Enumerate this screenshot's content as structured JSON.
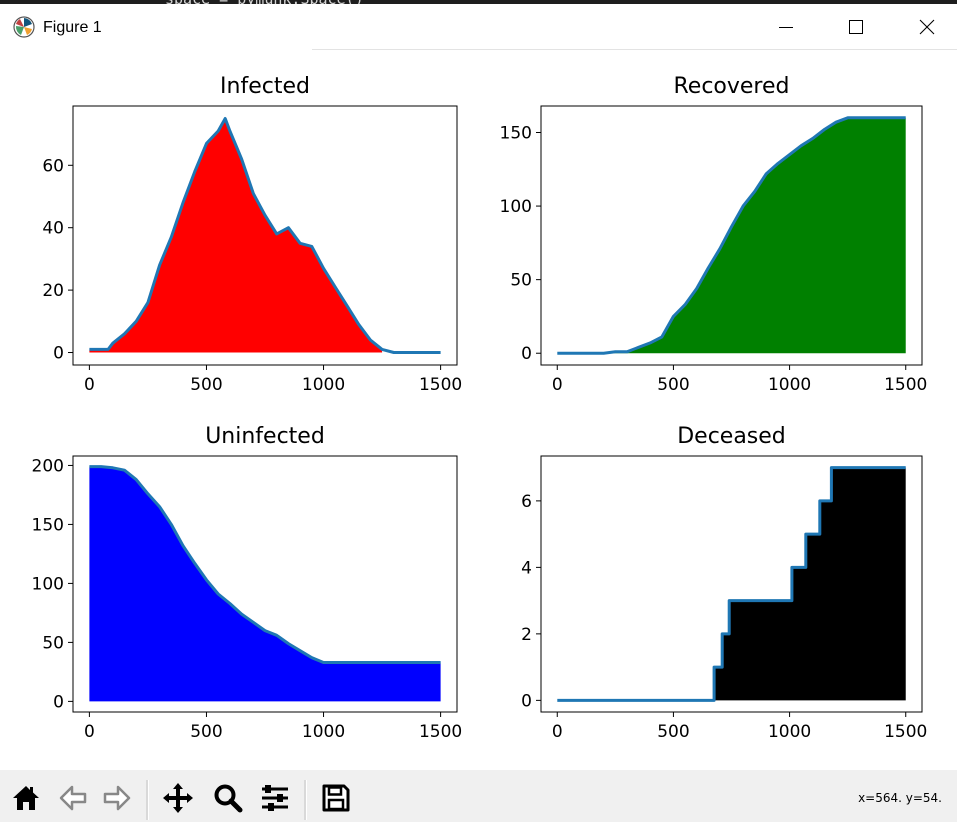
{
  "background_editor": {
    "text": "space = pymunk.Space()"
  },
  "window": {
    "title": "Figure 1",
    "icon": "matplotlib-icon",
    "controls": [
      "minimize-icon",
      "maximize-icon",
      "close-icon"
    ]
  },
  "toolbar": {
    "buttons": [
      {
        "name": "home-button",
        "icon": "home-icon"
      },
      {
        "name": "back-button",
        "icon": "arrow-left-icon"
      },
      {
        "name": "forward-button",
        "icon": "arrow-right-icon"
      },
      {
        "name": "pan-button",
        "icon": "move-icon"
      },
      {
        "name": "zoom-button",
        "icon": "magnifier-icon"
      },
      {
        "name": "configure-subplots-button",
        "icon": "sliders-icon"
      },
      {
        "name": "save-button",
        "icon": "floppy-disk-icon"
      }
    ],
    "coordinates": "x=564. y=54."
  },
  "chart_data": [
    {
      "type": "area",
      "title": "Infected",
      "fill_color": "#ff0000",
      "line_color": "#1f77b4",
      "xlim": [
        -70,
        1570
      ],
      "ylim": [
        -4,
        79
      ],
      "xticks": [
        0,
        500,
        1000,
        1500
      ],
      "yticks": [
        0,
        20,
        40,
        60
      ],
      "x": [
        0,
        80,
        100,
        150,
        200,
        250,
        300,
        350,
        400,
        450,
        500,
        550,
        580,
        600,
        650,
        700,
        750,
        800,
        850,
        900,
        950,
        1000,
        1050,
        1100,
        1150,
        1200,
        1250,
        1300,
        1350,
        1400,
        1450,
        1500
      ],
      "y": [
        1,
        1,
        3,
        6,
        10,
        16,
        28,
        37,
        48,
        58,
        67,
        71,
        75,
        71,
        62,
        51,
        44,
        38,
        40,
        35,
        34,
        27,
        21,
        15,
        9,
        4,
        1,
        0,
        0,
        0,
        0,
        0
      ],
      "fill_until_x": 1250
    },
    {
      "type": "area",
      "title": "Recovered",
      "fill_color": "#008000",
      "line_color": "#1f77b4",
      "xlim": [
        -70,
        1570
      ],
      "ylim": [
        -8,
        168
      ],
      "xticks": [
        0,
        500,
        1000,
        1500
      ],
      "yticks": [
        0,
        50,
        100,
        150
      ],
      "x": [
        0,
        200,
        250,
        300,
        350,
        400,
        450,
        500,
        550,
        600,
        650,
        700,
        750,
        800,
        850,
        900,
        950,
        1000,
        1050,
        1100,
        1150,
        1200,
        1250,
        1300,
        1350,
        1400,
        1450,
        1500
      ],
      "y": [
        0,
        0,
        1,
        1,
        4,
        7,
        11,
        25,
        33,
        44,
        58,
        71,
        86,
        100,
        110,
        122,
        129,
        135,
        141,
        146,
        152,
        157,
        160,
        160,
        160,
        160,
        160,
        160
      ]
    },
    {
      "type": "area",
      "title": "Uninfected",
      "fill_color": "#0000ff",
      "line_color": "#1f77b4",
      "xlim": [
        -70,
        1570
      ],
      "ylim": [
        -9,
        208
      ],
      "xticks": [
        0,
        500,
        1000,
        1500
      ],
      "yticks": [
        0,
        50,
        100,
        150,
        200
      ],
      "x": [
        0,
        50,
        100,
        150,
        200,
        250,
        300,
        350,
        400,
        450,
        500,
        550,
        600,
        650,
        700,
        750,
        800,
        850,
        900,
        950,
        1000,
        1050,
        1100,
        1500
      ],
      "y": [
        199,
        199,
        198,
        196,
        188,
        176,
        165,
        150,
        132,
        117,
        103,
        91,
        83,
        74,
        67,
        60,
        56,
        49,
        43,
        37,
        33,
        33,
        33,
        33
      ]
    },
    {
      "type": "area",
      "title": "Deceased",
      "fill_color": "#000000",
      "line_color": "#1f77b4",
      "xlim": [
        -70,
        1570
      ],
      "ylim": [
        -0.35,
        7.35
      ],
      "xticks": [
        0,
        500,
        1000,
        1500
      ],
      "yticks": [
        0,
        2,
        4,
        6
      ],
      "step": true,
      "x": [
        0,
        655,
        675,
        710,
        740,
        960,
        1010,
        1070,
        1130,
        1180,
        1500
      ],
      "y": [
        0,
        0,
        1,
        2,
        3,
        3,
        4,
        5,
        6,
        7,
        7
      ]
    }
  ]
}
